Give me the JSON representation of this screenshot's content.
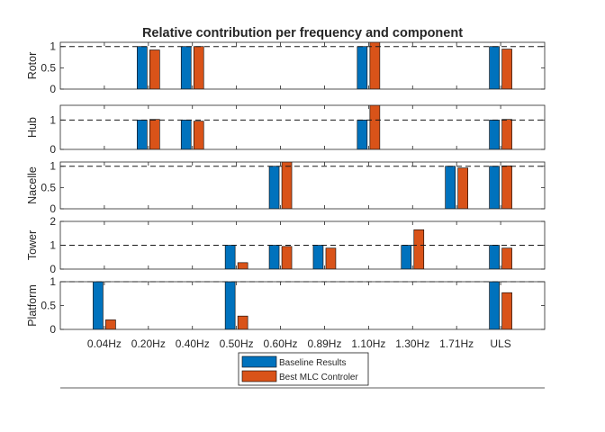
{
  "chart_data": {
    "type": "bar",
    "title": "Relative contribution per frequency and component",
    "categories": [
      "0.04Hz",
      "0.20Hz",
      "0.40Hz",
      "0.50Hz",
      "0.60Hz",
      "0.89Hz",
      "1.10Hz",
      "1.30Hz",
      "1.71Hz",
      "ULS"
    ],
    "series_names": [
      "Baseline Results",
      "Best MLC Controler"
    ],
    "colors": [
      "#0072BD",
      "#D95319"
    ],
    "reference_line": 1,
    "legend_position": "bottom",
    "panels": [
      {
        "ylabel": "Rotor",
        "ylim": [
          0,
          1.1
        ],
        "yticks": [
          0,
          0.5,
          1
        ],
        "ytick_labels": [
          "0",
          "0.5",
          "1"
        ],
        "series": [
          {
            "name": "Baseline Results",
            "values": [
              0,
              1,
              1,
              0,
              0,
              0,
              1,
              0,
              0,
              1
            ]
          },
          {
            "name": "Best MLC Controler",
            "values": [
              0,
              0.92,
              1.0,
              0,
              0,
              0,
              1.12,
              0,
              0,
              0.94
            ]
          }
        ]
      },
      {
        "ylabel": "Hub",
        "ylim": [
          0,
          1.5
        ],
        "yticks": [
          0,
          1
        ],
        "ytick_labels": [
          "0",
          "1"
        ],
        "series": [
          {
            "name": "Baseline Results",
            "values": [
              0,
              1,
              1,
              0,
              0,
              0,
              1,
              0,
              0,
              1
            ]
          },
          {
            "name": "Best MLC Controler",
            "values": [
              0,
              1.02,
              0.96,
              0,
              0,
              0,
              1.53,
              0,
              0,
              1.02
            ]
          }
        ]
      },
      {
        "ylabel": "Nacelle",
        "ylim": [
          0,
          1.1
        ],
        "yticks": [
          0,
          0.5,
          1
        ],
        "ytick_labels": [
          "0",
          "0.5",
          "1"
        ],
        "series": [
          {
            "name": "Baseline Results",
            "values": [
              0,
              0,
              0,
              0,
              1,
              0,
              0,
              0,
              1,
              1
            ]
          },
          {
            "name": "Best MLC Controler",
            "values": [
              0,
              0,
              0,
              0,
              1.13,
              0,
              0,
              0,
              0.96,
              1.01
            ]
          }
        ]
      },
      {
        "ylabel": "Tower",
        "ylim": [
          0,
          2
        ],
        "yticks": [
          0,
          1,
          2
        ],
        "ytick_labels": [
          "0",
          "1",
          "2"
        ],
        "series": [
          {
            "name": "Baseline Results",
            "values": [
              0,
              0,
              0,
              1,
              1,
              1,
              0,
              1,
              0,
              1
            ]
          },
          {
            "name": "Best MLC Controler",
            "values": [
              0,
              0,
              0,
              0.27,
              0.95,
              0.88,
              0,
              1.65,
              0,
              0.88
            ]
          }
        ]
      },
      {
        "ylabel": "Platform",
        "ylim": [
          0,
          1
        ],
        "yticks": [
          0,
          0.5,
          1
        ],
        "ytick_labels": [
          "0",
          "0.5",
          "1"
        ],
        "series": [
          {
            "name": "Baseline Results",
            "values": [
              1,
              0,
              0,
              1,
              0,
              0,
              0,
              0,
              0,
              1
            ]
          },
          {
            "name": "Best MLC Controler",
            "values": [
              0.2,
              0,
              0,
              0.28,
              0,
              0,
              0,
              0,
              0,
              0.77
            ]
          }
        ]
      }
    ]
  }
}
